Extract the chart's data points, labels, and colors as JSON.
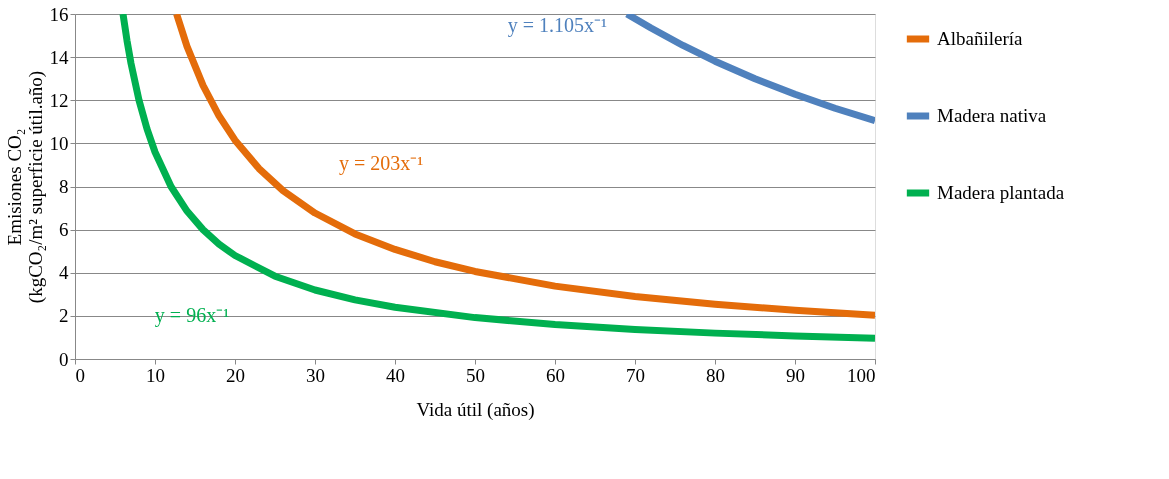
{
  "chart_data": {
    "type": "line",
    "xlabel": "Vida útil (años)",
    "ylabel": "Emisiones CO₂ (kgCO₂/m² superficie útil.año)",
    "xlim": [
      0,
      100
    ],
    "xticks": [
      0,
      10,
      20,
      30,
      40,
      50,
      60,
      70,
      80,
      90,
      100
    ],
    "ylim": [
      0,
      16
    ],
    "yticks": [
      0,
      2,
      4,
      6,
      8,
      10,
      12,
      14,
      16
    ],
    "grid": "y",
    "legend": "right",
    "marker": "none",
    "line_style": "solid",
    "series": [
      {
        "name": "Albañilería",
        "color": "#e46c0a",
        "x": [
          12.7,
          14,
          16,
          18,
          20,
          23,
          26,
          30,
          35,
          40,
          45,
          50,
          60,
          70,
          80,
          90,
          100
        ],
        "values": [
          16,
          14.5,
          12.69,
          11.28,
          10.15,
          8.83,
          7.81,
          6.77,
          5.8,
          5.08,
          4.51,
          4.06,
          3.38,
          2.9,
          2.54,
          2.26,
          2.03
        ]
      },
      {
        "name": "Madera nativa",
        "color": "#4f81bd",
        "x": [
          69,
          72,
          76,
          80,
          85,
          90,
          95,
          100
        ],
        "values": [
          16,
          15.35,
          14.54,
          13.81,
          13.0,
          12.28,
          11.63,
          11.05
        ]
      },
      {
        "name": "Madera plantada",
        "color": "#00b050",
        "x": [
          6,
          6.5,
          7,
          8,
          9,
          10,
          12,
          14,
          16,
          18,
          20,
          25,
          30,
          35,
          40,
          50,
          60,
          70,
          80,
          90,
          100
        ],
        "values": [
          16,
          14.77,
          13.71,
          12,
          10.67,
          9.6,
          8,
          6.86,
          6,
          5.33,
          4.8,
          3.84,
          3.2,
          2.74,
          2.4,
          1.92,
          1.6,
          1.37,
          1.2,
          1.07,
          0.96
        ]
      }
    ],
    "annotations": [
      "y = 203x⁻¹",
      "y = 1.105x⁻¹",
      "y = 96x⁻¹"
    ]
  }
}
